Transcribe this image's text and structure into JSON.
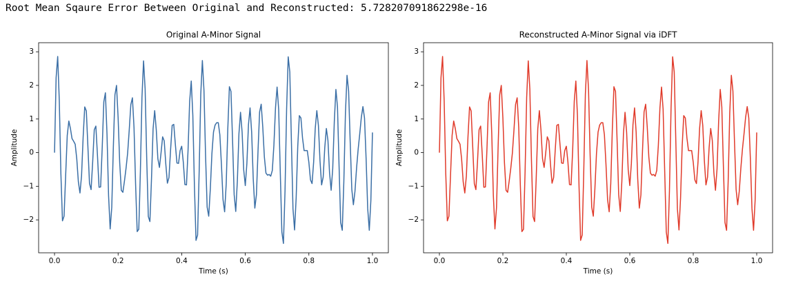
{
  "output_text": "Root Mean Sqaure Error Between Original and Reconstructed: 5.728207091862298e-16",
  "chart_data": [
    {
      "type": "line",
      "title": "Original A-Minor Signal",
      "x_label": "Time (s)",
      "y_label": "Amplitude",
      "color": "#3a6ea5",
      "xlim": [
        -0.05,
        1.05
      ],
      "ylim": [
        -2.98,
        3.27
      ],
      "xticks": [
        {
          "value": 0,
          "label": "0.0"
        },
        0.2,
        0.4,
        0.6,
        0.8,
        {
          "value": 1,
          "label": "1.0"
        }
      ],
      "yticks": [
        {
          "value": -2,
          "label": "−2"
        },
        {
          "value": -1,
          "label": "−1"
        },
        0,
        1,
        2,
        3
      ],
      "x": [
        0,
        0.005,
        0.01,
        0.015,
        0.02,
        0.025,
        0.03,
        0.035,
        0.04,
        0.045,
        0.05,
        0.055,
        0.06,
        0.065,
        0.07,
        0.075,
        0.08,
        0.085,
        0.09,
        0.095,
        0.1,
        0.105,
        0.11,
        0.115,
        0.12,
        0.125,
        0.13,
        0.135,
        0.14,
        0.145,
        0.15,
        0.155,
        0.16,
        0.165,
        0.17,
        0.175,
        0.18,
        0.185,
        0.19,
        0.195,
        0.2,
        0.205,
        0.21,
        0.215,
        0.22,
        0.225,
        0.23,
        0.235,
        0.24,
        0.245,
        0.25,
        0.255,
        0.26,
        0.265,
        0.27,
        0.275,
        0.28,
        0.285,
        0.29,
        0.295,
        0.3,
        0.305,
        0.31,
        0.315,
        0.32,
        0.325,
        0.33,
        0.335,
        0.34,
        0.345,
        0.35,
        0.355,
        0.36,
        0.365,
        0.37,
        0.375,
        0.38,
        0.385,
        0.39,
        0.395,
        0.4,
        0.405,
        0.41,
        0.415,
        0.42,
        0.425,
        0.43,
        0.435,
        0.44,
        0.445,
        0.45,
        0.455,
        0.46,
        0.465,
        0.47,
        0.475,
        0.48,
        0.485,
        0.49,
        0.495,
        0.5,
        0.505,
        0.51,
        0.515,
        0.52,
        0.525,
        0.53,
        0.535,
        0.54,
        0.545,
        0.55,
        0.555,
        0.56,
        0.565,
        0.57,
        0.575,
        0.58,
        0.585,
        0.59,
        0.595,
        0.6,
        0.605,
        0.61,
        0.615,
        0.62,
        0.625,
        0.63,
        0.635,
        0.64,
        0.645,
        0.65,
        0.655,
        0.66,
        0.665,
        0.67,
        0.675,
        0.68,
        0.685,
        0.69,
        0.695,
        0.7,
        0.705,
        0.71,
        0.715,
        0.72,
        0.725,
        0.73,
        0.735,
        0.74,
        0.745,
        0.75,
        0.755,
        0.76,
        0.765,
        0.77,
        0.775,
        0.78,
        0.785,
        0.79,
        0.795,
        0.8,
        0.805,
        0.81,
        0.815,
        0.82,
        0.825,
        0.83,
        0.835,
        0.84,
        0.845,
        0.85,
        0.855,
        0.86,
        0.865,
        0.87,
        0.875,
        0.88,
        0.885,
        0.89,
        0.895,
        0.9,
        0.905,
        0.91,
        0.915,
        0.92,
        0.925,
        0.93,
        0.935,
        0.94,
        0.945,
        0.95,
        0.955,
        0.96,
        0.965,
        0.97,
        0.975,
        0.98,
        0.985,
        0.99,
        0.995,
        1
      ],
      "values": [
        0,
        2.23,
        2.86,
        1.54,
        -0.62,
        -2.03,
        -1.89,
        -0.68,
        0.51,
        0.94,
        0.72,
        0.42,
        0.34,
        0.25,
        -0.19,
        -0.87,
        -1.2,
        -0.69,
        0.46,
        1.36,
        1.24,
        0.17,
        -0.92,
        -1.1,
        -0.28,
        0.68,
        0.79,
        -0.07,
        -1.03,
        -1.02,
        0.15,
        1.51,
        1.78,
        0.56,
        -1.28,
        -2.27,
        -1.63,
        0.16,
        1.72,
        2,
        1.04,
        -0.3,
        -1.12,
        -1.18,
        -0.84,
        -0.46,
        -0.01,
        0.68,
        1.43,
        1.63,
        0.75,
        -0.95,
        -2.35,
        -2.28,
        -0.57,
        1.64,
        2.73,
        1.89,
        -0.19,
        -1.9,
        -2.05,
        -0.78,
        0.71,
        1.25,
        0.68,
        -0.18,
        -0.44,
        -0.01,
        0.47,
        0.35,
        -0.34,
        -0.91,
        -0.74,
        0.08,
        0.81,
        0.84,
        0.25,
        -0.31,
        -0.32,
        0.06,
        0.19,
        -0.28,
        -0.95,
        -0.96,
        0.08,
        1.53,
        2.13,
        1.11,
        -0.99,
        -2.61,
        -2.45,
        -0.53,
        1.74,
        2.74,
        1.86,
        -0.07,
        -1.62,
        -1.89,
        -1.08,
        -0.03,
        0.61,
        0.82,
        0.89,
        0.89,
        0.53,
        -0.36,
        -1.4,
        -1.76,
        -0.93,
        0.71,
        1.96,
        1.82,
        0.36,
        -1.25,
        -1.75,
        -0.85,
        0.56,
        1.2,
        0.61,
        -0.51,
        -0.98,
        -0.32,
        0.83,
        1.33,
        0.61,
        -0.78,
        -1.65,
        -1.26,
        0.04,
        1.21,
        1.44,
        0.76,
        -0.13,
        -0.61,
        -0.67,
        -0.65,
        -0.7,
        -0.53,
        0.22,
        1.33,
        1.95,
        1.29,
        -0.55,
        -2.36,
        -2.7,
        -1.13,
        1.31,
        2.85,
        2.4,
        0.37,
        -1.67,
        -2.3,
        -1.35,
        0.18,
        1.1,
        1.03,
        0.44,
        0.06,
        0.06,
        0.06,
        -0.29,
        -0.81,
        -0.92,
        -0.28,
        0.72,
        1.25,
        0.81,
        -0.24,
        -0.96,
        -0.73,
        0.15,
        0.72,
        0.36,
        -0.6,
        -1.12,
        -0.48,
        0.93,
        1.88,
        1.36,
        -0.41,
        -2.08,
        -2.31,
        -0.86,
        1.18,
        2.3,
        1.83,
        0.31,
        -1.09,
        -1.55,
        -1.15,
        -0.46,
        0.1,
        0.56,
        1.05,
        1.37,
        1.03,
        -0.18,
        -1.66,
        -2.31,
        -1.42,
        0.6
      ]
    },
    {
      "type": "line",
      "title": "Reconstructed A-Minor Signal via iDFT",
      "x_label": "Time (s)",
      "y_label": "Amplitude",
      "color": "#e03a2a",
      "xlim": [
        -0.05,
        1.05
      ],
      "ylim": [
        -2.98,
        3.27
      ],
      "xticks": [
        {
          "value": 0,
          "label": "0.0"
        },
        0.2,
        0.4,
        0.6,
        0.8,
        {
          "value": 1,
          "label": "1.0"
        }
      ],
      "yticks": [
        {
          "value": -2,
          "label": "−2"
        },
        {
          "value": -1,
          "label": "−1"
        },
        0,
        1,
        2,
        3
      ],
      "x": [
        0,
        0.005,
        0.01,
        0.015,
        0.02,
        0.025,
        0.03,
        0.035,
        0.04,
        0.045,
        0.05,
        0.055,
        0.06,
        0.065,
        0.07,
        0.075,
        0.08,
        0.085,
        0.09,
        0.095,
        0.1,
        0.105,
        0.11,
        0.115,
        0.12,
        0.125,
        0.13,
        0.135,
        0.14,
        0.145,
        0.15,
        0.155,
        0.16,
        0.165,
        0.17,
        0.175,
        0.18,
        0.185,
        0.19,
        0.195,
        0.2,
        0.205,
        0.21,
        0.215,
        0.22,
        0.225,
        0.23,
        0.235,
        0.24,
        0.245,
        0.25,
        0.255,
        0.26,
        0.265,
        0.27,
        0.275,
        0.28,
        0.285,
        0.29,
        0.295,
        0.3,
        0.305,
        0.31,
        0.315,
        0.32,
        0.325,
        0.33,
        0.335,
        0.34,
        0.345,
        0.35,
        0.355,
        0.36,
        0.365,
        0.37,
        0.375,
        0.38,
        0.385,
        0.39,
        0.395,
        0.4,
        0.405,
        0.41,
        0.415,
        0.42,
        0.425,
        0.43,
        0.435,
        0.44,
        0.445,
        0.45,
        0.455,
        0.46,
        0.465,
        0.47,
        0.475,
        0.48,
        0.485,
        0.49,
        0.495,
        0.5,
        0.505,
        0.51,
        0.515,
        0.52,
        0.525,
        0.53,
        0.535,
        0.54,
        0.545,
        0.55,
        0.555,
        0.56,
        0.565,
        0.57,
        0.575,
        0.58,
        0.585,
        0.59,
        0.595,
        0.6,
        0.605,
        0.61,
        0.615,
        0.62,
        0.625,
        0.63,
        0.635,
        0.64,
        0.645,
        0.65,
        0.655,
        0.66,
        0.665,
        0.67,
        0.675,
        0.68,
        0.685,
        0.69,
        0.695,
        0.7,
        0.705,
        0.71,
        0.715,
        0.72,
        0.725,
        0.73,
        0.735,
        0.74,
        0.745,
        0.75,
        0.755,
        0.76,
        0.765,
        0.77,
        0.775,
        0.78,
        0.785,
        0.79,
        0.795,
        0.8,
        0.805,
        0.81,
        0.815,
        0.82,
        0.825,
        0.83,
        0.835,
        0.84,
        0.845,
        0.85,
        0.855,
        0.86,
        0.865,
        0.87,
        0.875,
        0.88,
        0.885,
        0.89,
        0.895,
        0.9,
        0.905,
        0.91,
        0.915,
        0.92,
        0.925,
        0.93,
        0.935,
        0.94,
        0.945,
        0.95,
        0.955,
        0.96,
        0.965,
        0.97,
        0.975,
        0.98,
        0.985,
        0.99,
        0.995,
        1
      ],
      "values": [
        0,
        2.23,
        2.86,
        1.54,
        -0.62,
        -2.03,
        -1.89,
        -0.68,
        0.51,
        0.94,
        0.72,
        0.42,
        0.34,
        0.25,
        -0.19,
        -0.87,
        -1.2,
        -0.69,
        0.46,
        1.36,
        1.24,
        0.17,
        -0.92,
        -1.1,
        -0.28,
        0.68,
        0.79,
        -0.07,
        -1.03,
        -1.02,
        0.15,
        1.51,
        1.78,
        0.56,
        -1.28,
        -2.27,
        -1.63,
        0.16,
        1.72,
        2,
        1.04,
        -0.3,
        -1.12,
        -1.18,
        -0.84,
        -0.46,
        -0.01,
        0.68,
        1.43,
        1.63,
        0.75,
        -0.95,
        -2.35,
        -2.28,
        -0.57,
        1.64,
        2.73,
        1.89,
        -0.19,
        -1.9,
        -2.05,
        -0.78,
        0.71,
        1.25,
        0.68,
        -0.18,
        -0.44,
        -0.01,
        0.47,
        0.35,
        -0.34,
        -0.91,
        -0.74,
        0.08,
        0.81,
        0.84,
        0.25,
        -0.31,
        -0.32,
        0.06,
        0.19,
        -0.28,
        -0.95,
        -0.96,
        0.08,
        1.53,
        2.13,
        1.11,
        -0.99,
        -2.61,
        -2.45,
        -0.53,
        1.74,
        2.74,
        1.86,
        -0.07,
        -1.62,
        -1.89,
        -1.08,
        -0.03,
        0.61,
        0.82,
        0.89,
        0.89,
        0.53,
        -0.36,
        -1.4,
        -1.76,
        -0.93,
        0.71,
        1.96,
        1.82,
        0.36,
        -1.25,
        -1.75,
        -0.85,
        0.56,
        1.2,
        0.61,
        -0.51,
        -0.98,
        -0.32,
        0.83,
        1.33,
        0.61,
        -0.78,
        -1.65,
        -1.26,
        0.04,
        1.21,
        1.44,
        0.76,
        -0.13,
        -0.61,
        -0.67,
        -0.65,
        -0.7,
        -0.53,
        0.22,
        1.33,
        1.95,
        1.29,
        -0.55,
        -2.36,
        -2.7,
        -1.13,
        1.31,
        2.85,
        2.4,
        0.37,
        -1.67,
        -2.3,
        -1.35,
        0.18,
        1.1,
        1.03,
        0.44,
        0.06,
        0.06,
        0.06,
        -0.29,
        -0.81,
        -0.92,
        -0.28,
        0.72,
        1.25,
        0.81,
        -0.24,
        -0.96,
        -0.73,
        0.15,
        0.72,
        0.36,
        -0.6,
        -1.12,
        -0.48,
        0.93,
        1.88,
        1.36,
        -0.41,
        -2.08,
        -2.31,
        -0.86,
        1.18,
        2.3,
        1.83,
        0.31,
        -1.09,
        -1.55,
        -1.15,
        -0.46,
        0.1,
        0.56,
        1.05,
        1.37,
        1.03,
        -0.18,
        -1.66,
        -2.31,
        -1.42,
        0.6
      ]
    }
  ]
}
